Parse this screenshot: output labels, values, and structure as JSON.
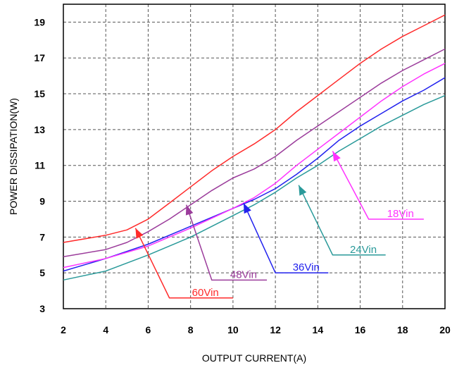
{
  "chart_data": {
    "type": "line",
    "title": "",
    "xlabel": "OUTPUT CURRENT(A)",
    "ylabel": "POWER DISSIPATION(W)",
    "xlim": [
      2,
      20
    ],
    "ylim": [
      3,
      20
    ],
    "x_ticks": [
      "2",
      "4",
      "6",
      "8",
      "10",
      "12",
      "14",
      "16",
      "18",
      "20"
    ],
    "y_ticks": [
      "3",
      "5",
      "7",
      "9",
      "11",
      "13",
      "15",
      "17",
      "19"
    ],
    "grid": true,
    "series": [
      {
        "name": "60Vin",
        "color": "#ff2b2b",
        "points": [
          [
            2,
            6.7
          ],
          [
            4,
            7.1
          ],
          [
            5,
            7.4
          ],
          [
            6,
            8.0
          ],
          [
            7,
            8.9
          ],
          [
            8,
            9.8
          ],
          [
            9,
            10.7
          ],
          [
            10,
            11.5
          ],
          [
            11,
            12.2
          ],
          [
            12,
            13.0
          ],
          [
            13,
            14.0
          ],
          [
            14,
            14.9
          ],
          [
            15,
            15.8
          ],
          [
            16,
            16.7
          ],
          [
            17,
            17.5
          ],
          [
            18,
            18.2
          ],
          [
            19,
            18.8
          ],
          [
            20,
            19.4
          ]
        ]
      },
      {
        "name": "48Vin",
        "color": "#9b3c9b",
        "points": [
          [
            2,
            5.9
          ],
          [
            4,
            6.3
          ],
          [
            5,
            6.7
          ],
          [
            6,
            7.3
          ],
          [
            7,
            8.0
          ],
          [
            8,
            8.8
          ],
          [
            9,
            9.6
          ],
          [
            10,
            10.3
          ],
          [
            11,
            10.8
          ],
          [
            12,
            11.5
          ],
          [
            13,
            12.4
          ],
          [
            14,
            13.2
          ],
          [
            15,
            14.0
          ],
          [
            16,
            14.8
          ],
          [
            17,
            15.6
          ],
          [
            18,
            16.3
          ],
          [
            19,
            16.9
          ],
          [
            20,
            17.5
          ]
        ]
      },
      {
        "name": "36Vin",
        "color": "#2222ee",
        "points": [
          [
            2,
            5.1
          ],
          [
            4,
            5.8
          ],
          [
            6,
            6.6
          ],
          [
            8,
            7.6
          ],
          [
            10,
            8.6
          ],
          [
            11,
            9.1
          ],
          [
            12,
            9.7
          ],
          [
            13,
            10.5
          ],
          [
            14,
            11.4
          ],
          [
            15,
            12.4
          ],
          [
            16,
            13.2
          ],
          [
            17,
            13.9
          ],
          [
            18,
            14.6
          ],
          [
            19,
            15.2
          ],
          [
            20,
            15.9
          ]
        ]
      },
      {
        "name": "24Vin",
        "color": "#2a9a9a",
        "points": [
          [
            2,
            4.6
          ],
          [
            4,
            5.1
          ],
          [
            6,
            6.0
          ],
          [
            8,
            7.0
          ],
          [
            10,
            8.2
          ],
          [
            11,
            8.8
          ],
          [
            12,
            9.5
          ],
          [
            13,
            10.3
          ],
          [
            14,
            11.0
          ],
          [
            15,
            11.8
          ],
          [
            16,
            12.5
          ],
          [
            17,
            13.2
          ],
          [
            18,
            13.8
          ],
          [
            19,
            14.4
          ],
          [
            20,
            14.9
          ]
        ]
      },
      {
        "name": "18Vin",
        "color": "#ff33ff",
        "points": [
          [
            2,
            5.3
          ],
          [
            4,
            5.8
          ],
          [
            6,
            6.5
          ],
          [
            8,
            7.5
          ],
          [
            10,
            8.6
          ],
          [
            11,
            9.2
          ],
          [
            12,
            10.0
          ],
          [
            13,
            11.0
          ],
          [
            14,
            11.9
          ],
          [
            15,
            12.8
          ],
          [
            16,
            13.7
          ],
          [
            17,
            14.6
          ],
          [
            18,
            15.4
          ],
          [
            19,
            16.1
          ],
          [
            20,
            16.7
          ]
        ]
      }
    ],
    "annotations": [
      {
        "text": "60Vin",
        "color": "#ff2b2b",
        "arrow_to": [
          5.4,
          7.5
        ],
        "elbow": [
          7.0,
          3.6
        ],
        "end": [
          10.0,
          3.6
        ]
      },
      {
        "text": "48Vin",
        "color": "#9b3c9b",
        "arrow_to": [
          7.8,
          8.8
        ],
        "elbow": [
          9.0,
          4.6
        ],
        "end": [
          11.6,
          4.6
        ]
      },
      {
        "text": "36Vin",
        "color": "#2222ee",
        "arrow_to": [
          10.5,
          8.9
        ],
        "elbow": [
          12.0,
          5.0
        ],
        "end": [
          14.5,
          5.0
        ]
      },
      {
        "text": "24Vin",
        "color": "#2a9a9a",
        "arrow_to": [
          13.1,
          9.9
        ],
        "elbow": [
          14.7,
          6.0
        ],
        "end": [
          17.2,
          6.0
        ]
      },
      {
        "text": "18Vin",
        "color": "#ff33ff",
        "arrow_to": [
          14.7,
          11.8
        ],
        "elbow": [
          16.4,
          8.0
        ],
        "end": [
          19.0,
          8.0
        ]
      }
    ]
  }
}
